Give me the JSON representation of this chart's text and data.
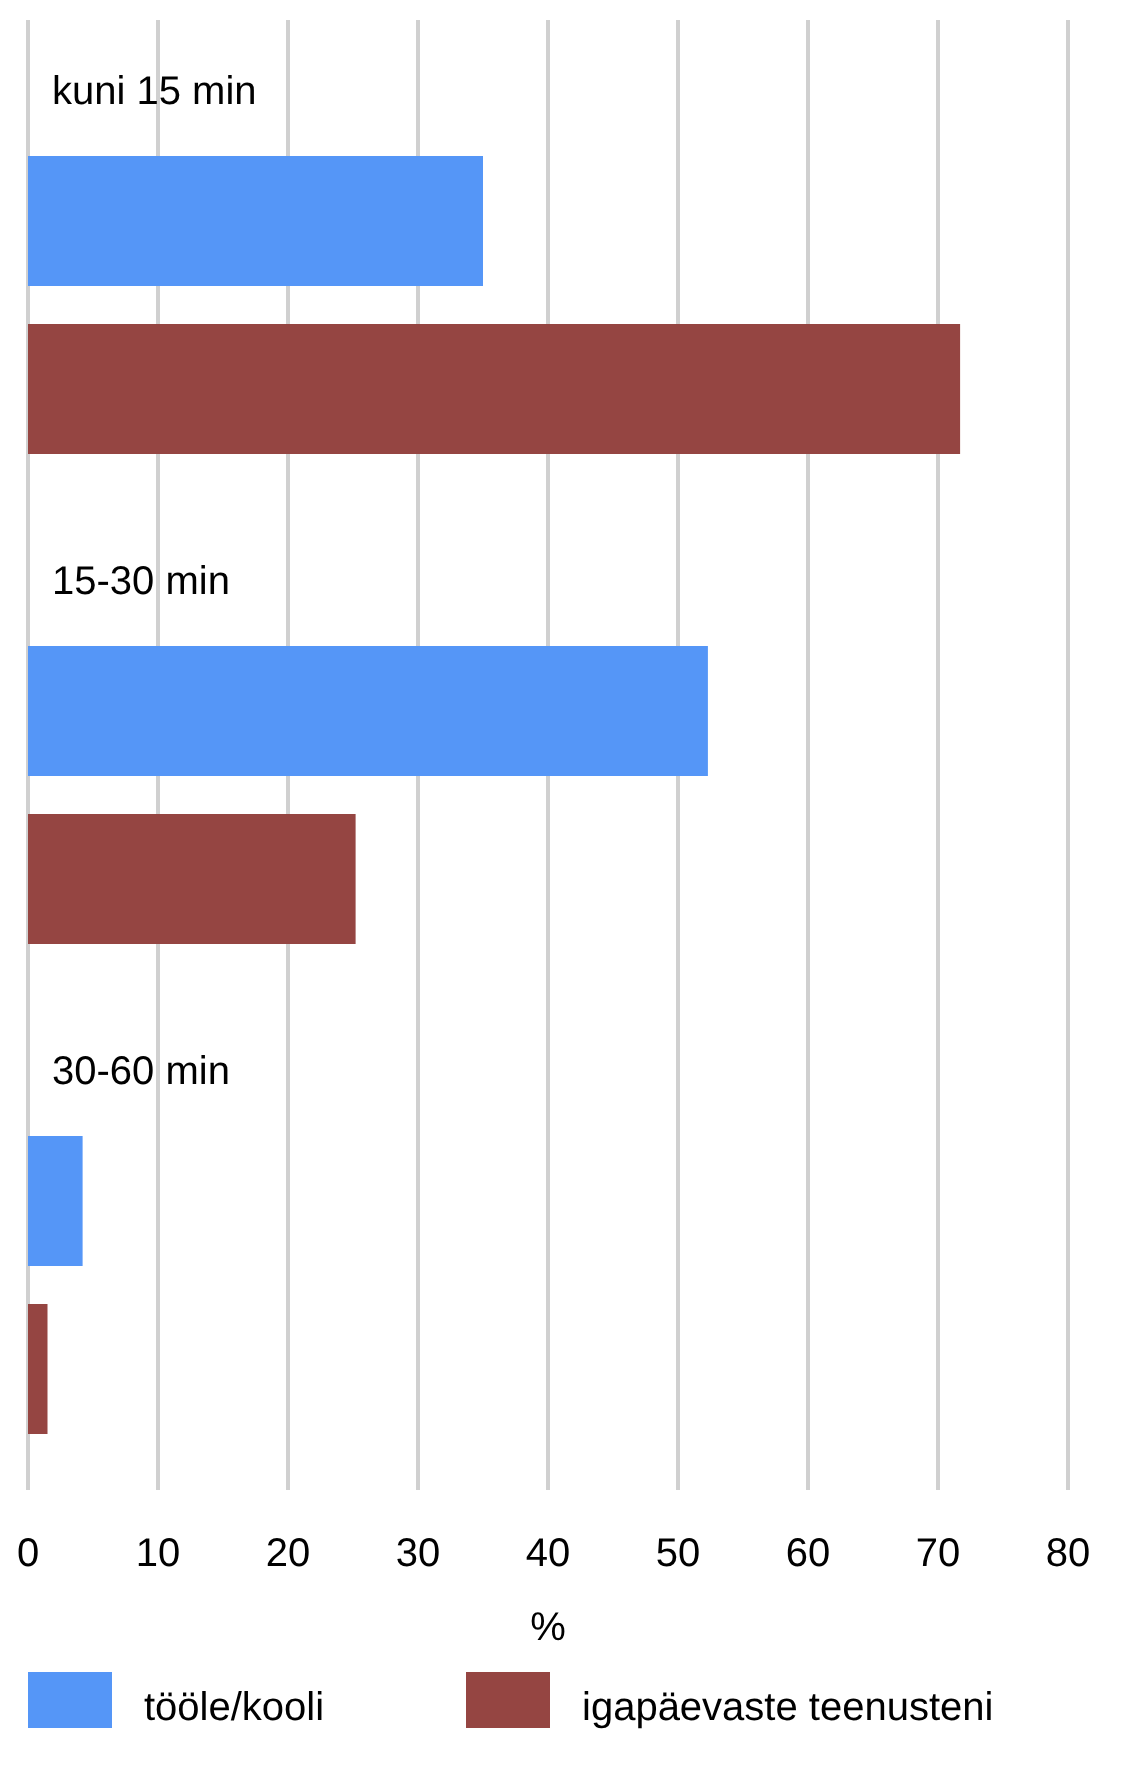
{
  "chart_data": {
    "type": "bar",
    "orientation": "horizontal",
    "categories": [
      "kuni 15 min",
      "15-30 min",
      "30-60 min"
    ],
    "series": [
      {
        "name": "tööle/kooli",
        "color": "#5596f7",
        "values": [
          35,
          52.3,
          4.2
        ]
      },
      {
        "name": "igapäevaste teenusteni",
        "color": "#954542",
        "values": [
          71.7,
          25.2,
          1.5
        ]
      }
    ],
    "xlim": [
      0,
      80
    ],
    "xticks": [
      0,
      10,
      20,
      30,
      40,
      50,
      60,
      70,
      80
    ],
    "xlabel": "%",
    "grid": "x",
    "legend": "bottom"
  }
}
